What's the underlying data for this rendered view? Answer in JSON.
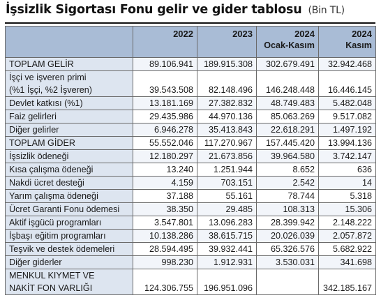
{
  "title": {
    "main": "İşsizlik Sigortası Fonu gelir ve gider tablosu",
    "unit": "(Bin TL)"
  },
  "columns": [
    {
      "year": "2022",
      "sub": ""
    },
    {
      "year": "2023",
      "sub": ""
    },
    {
      "year": "2024",
      "sub": "Ocak-Kasım"
    },
    {
      "year": "2024",
      "sub": "Kasım"
    }
  ],
  "rows": [
    {
      "label": "TOPLAM GELİR",
      "values": [
        "89.106.941",
        "189.915.308",
        "302.679.491",
        "32.942.468"
      ]
    },
    {
      "label": "İşçi ve işveren primi",
      "label2": "(%1 İşçi, %2 İşveren)",
      "values": [
        "39.543.508",
        "82.148.496",
        "146.248.448",
        "16.446.145"
      ]
    },
    {
      "label": "Devlet katkısı (%1)",
      "values": [
        "13.181.169",
        "27.382.832",
        "48.749.483",
        "5.482.048"
      ]
    },
    {
      "label": "Faiz gelirleri",
      "values": [
        "29.435.986",
        "44.970.136",
        "85.063.269",
        "9.517.082"
      ]
    },
    {
      "label": "Diğer gelirler",
      "values": [
        "6.946.278",
        "35.413.843",
        "22.618.291",
        "1.497.192"
      ]
    },
    {
      "label": "TOPLAM GİDER",
      "values": [
        "55.552.046",
        "117.270.967",
        "157.445.420",
        "13.994.136"
      ]
    },
    {
      "label": "İşsizlik ödeneği",
      "values": [
        "12.180.297",
        "21.673.856",
        "39.964.580",
        "3.742.147"
      ]
    },
    {
      "label": "Kısa çalışma ödeneği",
      "values": [
        "13.240",
        "1.251.944",
        "8.652",
        "636"
      ]
    },
    {
      "label": "Nakdi ücret desteği",
      "values": [
        "4.159",
        "703.151",
        "2.542",
        "14"
      ]
    },
    {
      "label": "Yarım çalışma ödeneği",
      "values": [
        "37.188",
        "55.161",
        "78.744",
        "5.318"
      ]
    },
    {
      "label": "Ücret Garanti Fonu ödemesi",
      "values": [
        "38.350",
        "29.485",
        "108.313",
        "15.306"
      ]
    },
    {
      "label": "Aktif işgücü programları",
      "values": [
        "3.547.801",
        "13.096.283",
        "28.399.942",
        "2.148.222"
      ]
    },
    {
      "label": "İşbaşı eğitim programları",
      "values": [
        "10.138.286",
        "38.615.715",
        "20.026.039",
        "2.057.872"
      ]
    },
    {
      "label": "Teşvik ve destek ödemeleri",
      "values": [
        "28.594.495",
        "39.932.441",
        "65.326.576",
        "5.682.922"
      ]
    },
    {
      "label": "Diğer giderler",
      "values": [
        "998.230",
        "1.912.931",
        "3.530.031",
        "341.698"
      ]
    },
    {
      "label": "MENKUL KIYMET VE",
      "label2": "NAKİT FON VARLIĞI",
      "values": [
        "124.306.755",
        "196.951.096",
        "",
        "342.185.167"
      ]
    }
  ],
  "colors": {
    "header_bg": "#a9bcd6",
    "label_bg": "#dde5f0",
    "border": "#6a6a6a"
  }
}
